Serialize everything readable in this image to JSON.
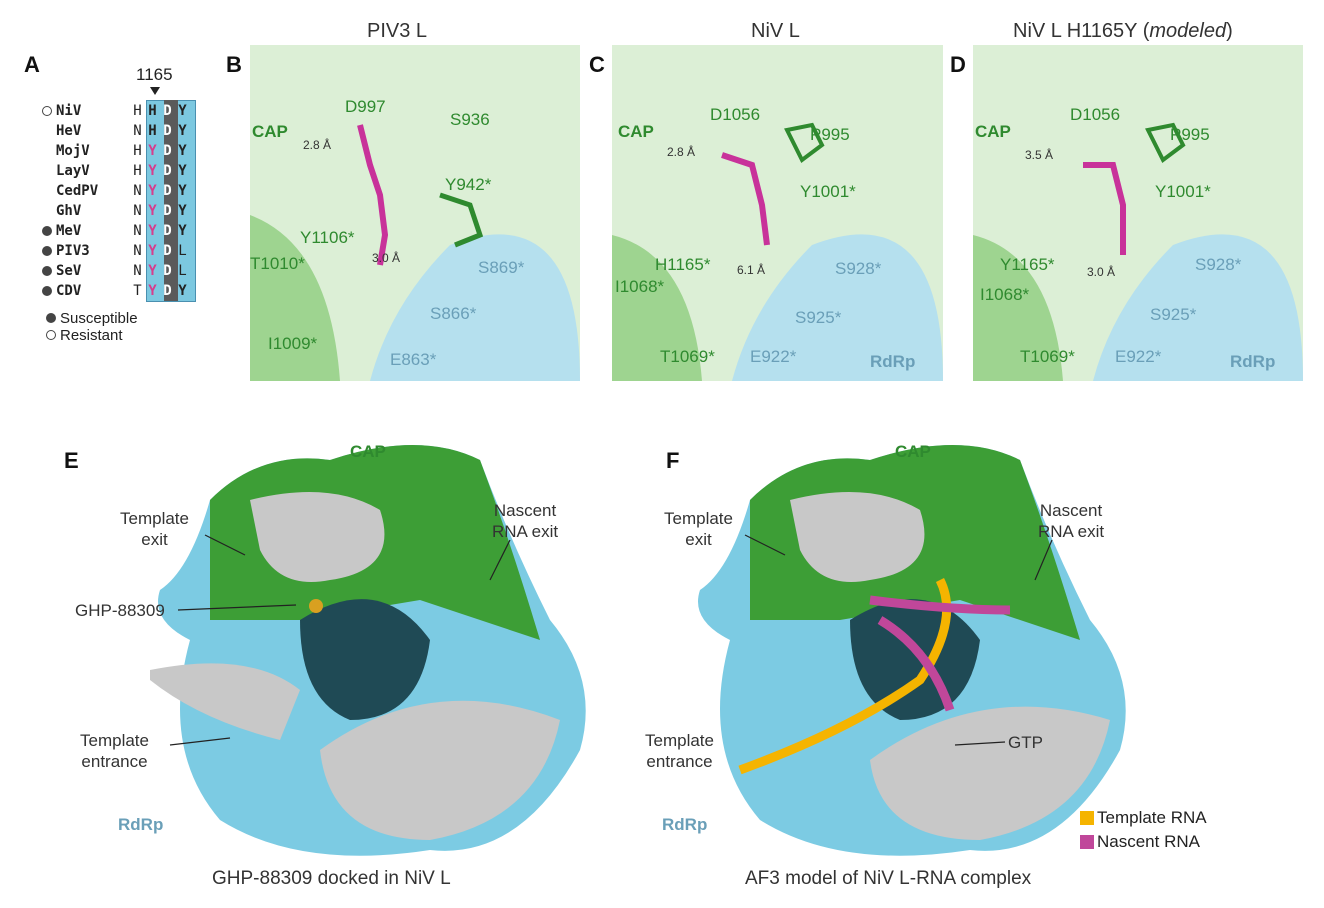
{
  "panel_letters": [
    "A",
    "B",
    "C",
    "D",
    "E",
    "F"
  ],
  "panel_a": {
    "position_label": "1165",
    "rows": [
      {
        "virus": "NiV",
        "status": "resistant",
        "residues": [
          "H",
          "H",
          "D",
          "Y"
        ]
      },
      {
        "virus": "HeV",
        "status": "",
        "residues": [
          "N",
          "H",
          "D",
          "Y"
        ]
      },
      {
        "virus": "MojV",
        "status": "",
        "residues": [
          "H",
          "Y",
          "D",
          "Y"
        ]
      },
      {
        "virus": "LayV",
        "status": "",
        "residues": [
          "H",
          "Y",
          "D",
          "Y"
        ]
      },
      {
        "virus": "CedPV",
        "status": "",
        "residues": [
          "N",
          "Y",
          "D",
          "Y"
        ]
      },
      {
        "virus": "GhV",
        "status": "",
        "residues": [
          "N",
          "Y",
          "D",
          "Y"
        ]
      },
      {
        "virus": "MeV",
        "status": "susceptible",
        "residues": [
          "N",
          "Y",
          "D",
          "Y"
        ]
      },
      {
        "virus": "PIV3",
        "status": "susceptible",
        "residues": [
          "N",
          "Y",
          "D",
          "L"
        ]
      },
      {
        "virus": "SeV",
        "status": "susceptible",
        "residues": [
          "N",
          "Y",
          "D",
          "L"
        ]
      },
      {
        "virus": "CDV",
        "status": "susceptible",
        "residues": [
          "T",
          "Y",
          "D",
          "Y"
        ]
      }
    ],
    "legend": {
      "susceptible": "Susceptible",
      "resistant": "Resistant"
    },
    "colors": {
      "highlight_column": "#7cc8e0",
      "conserved_column": "#5a5a5a",
      "tyrosine": "#d63c8c"
    }
  },
  "panel_b": {
    "title": "PIV3 L",
    "labels": {
      "cap": "CAP",
      "d": "D997",
      "s936": "S936",
      "dist1": "2.8 Å",
      "y942": "Y942*",
      "y1106": "Y1106*",
      "dist2": "3.0 Å",
      "t1010": "T1010*",
      "s869": "S869*",
      "s866": "S866*",
      "i1009": "I1009*",
      "e863": "E863*"
    }
  },
  "panel_c": {
    "title": "NiV L",
    "labels": {
      "cap": "CAP",
      "d": "D1056",
      "p": "P995",
      "dist1": "2.8 Å",
      "y": "Y1001*",
      "h": "H1165*",
      "dist2": "6.1 Å",
      "s928": "S928*",
      "i": "I1068*",
      "s925": "S925*",
      "t": "T1069*",
      "e": "E922*",
      "rdrp": "RdRp"
    }
  },
  "panel_d": {
    "title_main": "NiV L H1165Y (",
    "title_italic": "modeled",
    "title_end": ")",
    "labels": {
      "cap": "CAP",
      "d": "D1056",
      "p": "P995",
      "dist1": "3.5 Å",
      "y": "Y1001*",
      "y1165": "Y1165*",
      "dist2": "3.0 Å",
      "s928": "S928*",
      "i": "I1068*",
      "s925": "S925*",
      "t": "T1069*",
      "e": "E922*",
      "rdrp": "RdRp"
    }
  },
  "panel_e": {
    "cap": "CAP",
    "template_exit": [
      "Template",
      "exit"
    ],
    "nascent_exit": [
      "Nascent",
      "RNA exit"
    ],
    "compound": "GHP-88309",
    "template_entrance": [
      "Template",
      "entrance"
    ],
    "rdrp": "RdRp",
    "caption": "GHP-88309 docked in NiV L"
  },
  "panel_f": {
    "cap": "CAP",
    "template_exit": [
      "Template",
      "exit"
    ],
    "nascent_exit": [
      "Nascent",
      "RNA exit"
    ],
    "gtp": "GTP",
    "template_entrance": [
      "Template",
      "entrance"
    ],
    "rdrp": "RdRp",
    "caption": "AF3 model of NiV L-RNA complex",
    "legend": [
      {
        "label": "Template RNA",
        "color": "#f5b400"
      },
      {
        "label": "Nascent RNA",
        "color": "#c0479a"
      }
    ]
  },
  "colors": {
    "cap_green": "#2f8a2f",
    "rdrp_blue": "#7ccbe3",
    "ligand_magenta": "#cc3399",
    "cut_gray": "#c8c8c8"
  }
}
